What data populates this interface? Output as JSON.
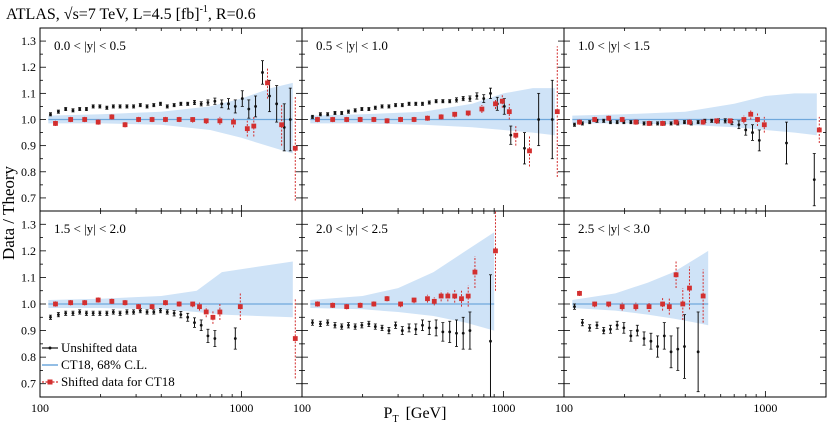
{
  "title": "ATLAS, √s=7 TeV, L=4.5 [fb]",
  "title_sup": "-1",
  "title_tail": ", R=0.6",
  "ylabel": "Data / Theory",
  "xlabel_main": "P",
  "xlabel_sub": "T",
  "xlabel_unit": "[GeV]",
  "legend": {
    "unshifted": "Unshifted data",
    "band": "CT18, 68% C.L.",
    "shifted": "Shifted data for CT18"
  },
  "colors": {
    "unshifted": "#111111",
    "band": "#cfe3f7",
    "line": "#6fa8dc",
    "shifted": "#d32f2f"
  },
  "chart_data": [
    {
      "type": "scatter",
      "title": "0.0 < |y| < 0.5",
      "xscale": "log",
      "xlim": [
        100,
        2000
      ],
      "ylim": [
        0.65,
        1.35
      ],
      "yticks": [
        0.7,
        0.8,
        0.9,
        1.0,
        1.1,
        1.2,
        1.3
      ],
      "xticks": [
        100,
        1000
      ],
      "band": {
        "x": [
          110,
          200,
          400,
          700,
          1000,
          1400,
          1800
        ],
        "lo": [
          0.985,
          0.985,
          0.98,
          0.96,
          0.93,
          0.895,
          0.87
        ],
        "hi": [
          1.015,
          1.02,
          1.03,
          1.05,
          1.08,
          1.12,
          1.14
        ]
      },
      "unshifted": {
        "x": [
          116,
          127,
          138,
          150,
          162,
          175,
          189,
          204,
          221,
          238,
          257,
          278,
          300,
          324,
          350,
          378,
          408,
          441,
          477,
          515,
          557,
          602,
          650,
          702,
          760,
          822,
          888,
          960,
          1040,
          1120,
          1210,
          1310,
          1420,
          1540,
          1680,
          1800
        ],
        "y": [
          1.02,
          1.03,
          1.04,
          1.035,
          1.04,
          1.04,
          1.05,
          1.05,
          1.045,
          1.05,
          1.05,
          1.05,
          1.05,
          1.055,
          1.05,
          1.055,
          1.06,
          1.05,
          1.055,
          1.06,
          1.06,
          1.065,
          1.06,
          1.065,
          1.07,
          1.06,
          1.06,
          1.05,
          1.08,
          1.04,
          1.05,
          1.18,
          1.09,
          1.06,
          0.97,
          1.0
        ],
        "err": [
          0.006,
          0.006,
          0.006,
          0.006,
          0.006,
          0.006,
          0.006,
          0.006,
          0.006,
          0.006,
          0.006,
          0.006,
          0.006,
          0.006,
          0.006,
          0.006,
          0.006,
          0.006,
          0.006,
          0.006,
          0.006,
          0.008,
          0.008,
          0.01,
          0.012,
          0.015,
          0.02,
          0.025,
          0.03,
          0.035,
          0.04,
          0.045,
          0.06,
          0.07,
          0.09,
          0.12
        ]
      },
      "shifted": {
        "x": [
          116,
          138,
          162,
          189,
          221,
          257,
          300,
          350,
          408,
          477,
          557,
          650,
          760,
          888,
          1040,
          1120,
          1310,
          1540,
          1800
        ],
        "y": [
          0.985,
          1.0,
          1.0,
          0.99,
          1.01,
          0.98,
          1.0,
          1.0,
          1.0,
          1.0,
          1.0,
          0.995,
          0.995,
          0.99,
          0.965,
          0.975,
          1.14,
          0.98,
          0.89
        ],
        "err": [
          0.01,
          0.01,
          0.01,
          0.01,
          0.01,
          0.01,
          0.01,
          0.01,
          0.01,
          0.01,
          0.012,
          0.012,
          0.015,
          0.02,
          0.03,
          0.04,
          0.06,
          0.08,
          0.2
        ]
      }
    },
    {
      "type": "scatter",
      "title": "0.5 < |y| < 1.0",
      "xscale": "log",
      "xlim": [
        100,
        2000
      ],
      "ylim": [
        0.65,
        1.35
      ],
      "yticks": [
        0.7,
        0.8,
        0.9,
        1.0,
        1.1,
        1.2,
        1.3
      ],
      "xticks": [
        100,
        1000
      ],
      "band": {
        "x": [
          110,
          200,
          400,
          700,
          1000,
          1400,
          1800
        ],
        "lo": [
          0.985,
          0.985,
          0.98,
          0.97,
          0.96,
          0.95,
          0.94
        ],
        "hi": [
          1.015,
          1.02,
          1.03,
          1.06,
          1.1,
          1.12,
          1.12
        ]
      },
      "unshifted": {
        "x": [
          116,
          127,
          138,
          150,
          162,
          175,
          189,
          204,
          221,
          238,
          257,
          278,
          300,
          324,
          350,
          378,
          408,
          441,
          477,
          515,
          557,
          602,
          650,
          702,
          760,
          822,
          888,
          960,
          1040,
          1120,
          1310,
          1540,
          1800
        ],
        "y": [
          1.01,
          1.02,
          1.02,
          1.025,
          1.025,
          1.03,
          1.035,
          1.04,
          1.04,
          1.045,
          1.05,
          1.05,
          1.055,
          1.055,
          1.06,
          1.06,
          1.06,
          1.065,
          1.07,
          1.07,
          1.07,
          1.075,
          1.08,
          1.08,
          1.09,
          1.08,
          1.1,
          1.06,
          1.05,
          0.94,
          0.89,
          1.0,
          1.0
        ],
        "err": [
          0.006,
          0.006,
          0.006,
          0.006,
          0.006,
          0.006,
          0.006,
          0.006,
          0.006,
          0.006,
          0.006,
          0.006,
          0.006,
          0.006,
          0.006,
          0.006,
          0.006,
          0.006,
          0.006,
          0.006,
          0.006,
          0.008,
          0.008,
          0.01,
          0.012,
          0.015,
          0.02,
          0.025,
          0.03,
          0.035,
          0.06,
          0.1,
          0.15
        ]
      },
      "shifted": {
        "x": [
          116,
          138,
          162,
          189,
          221,
          257,
          300,
          350,
          408,
          477,
          557,
          650,
          760,
          888,
          960,
          1040,
          1120,
          1310,
          1800
        ],
        "y": [
          1.0,
          1.0,
          1.0,
          1.0,
          1.0,
          0.995,
          1.0,
          1.0,
          1.005,
          1.01,
          1.02,
          1.025,
          1.04,
          1.06,
          1.07,
          1.03,
          0.94,
          0.88,
          1.03
        ],
        "err": [
          0.01,
          0.01,
          0.01,
          0.01,
          0.01,
          0.01,
          0.01,
          0.01,
          0.01,
          0.01,
          0.012,
          0.012,
          0.015,
          0.02,
          0.025,
          0.03,
          0.04,
          0.06,
          0.25
        ]
      }
    },
    {
      "type": "scatter",
      "title": "1.0 < |y| < 1.5",
      "xscale": "log",
      "xlim": [
        100,
        2000
      ],
      "ylim": [
        0.65,
        1.35
      ],
      "yticks": [
        0.7,
        0.8,
        0.9,
        1.0,
        1.1,
        1.2,
        1.3
      ],
      "xticks": [
        100,
        1000
      ],
      "band": {
        "x": [
          110,
          200,
          400,
          700,
          1000,
          1400,
          1800
        ],
        "lo": [
          0.985,
          0.985,
          0.98,
          0.97,
          0.96,
          0.95,
          0.94
        ],
        "hi": [
          1.015,
          1.02,
          1.03,
          1.06,
          1.09,
          1.1,
          1.1
        ]
      },
      "unshifted": {
        "x": [
          116,
          127,
          138,
          150,
          162,
          175,
          189,
          204,
          221,
          238,
          257,
          278,
          300,
          324,
          350,
          378,
          408,
          441,
          477,
          515,
          557,
          602,
          650,
          702,
          760,
          822,
          888,
          960,
          1310,
          1800
        ],
        "y": [
          0.98,
          0.985,
          0.99,
          0.995,
          0.995,
          0.99,
          0.99,
          0.99,
          0.99,
          0.99,
          0.985,
          0.985,
          0.985,
          0.985,
          0.985,
          0.985,
          0.99,
          0.985,
          0.99,
          0.995,
          0.995,
          0.995,
          0.995,
          0.99,
          0.98,
          0.96,
          0.95,
          0.92,
          0.91,
          0.77
        ],
        "err": [
          0.006,
          0.006,
          0.006,
          0.006,
          0.006,
          0.006,
          0.006,
          0.006,
          0.006,
          0.006,
          0.006,
          0.006,
          0.006,
          0.006,
          0.006,
          0.006,
          0.006,
          0.006,
          0.006,
          0.006,
          0.006,
          0.008,
          0.008,
          0.01,
          0.015,
          0.02,
          0.03,
          0.04,
          0.08,
          0.1
        ]
      },
      "shifted": {
        "x": [
          116,
          138,
          162,
          189,
          221,
          257,
          300,
          350,
          408,
          477,
          557,
          650,
          760,
          822,
          888,
          960,
          1800
        ],
        "y": [
          0.99,
          1.0,
          1.005,
          1.0,
          0.99,
          0.985,
          0.985,
          0.99,
          0.99,
          0.99,
          0.995,
          0.995,
          1.0,
          1.02,
          1.0,
          0.98,
          0.96
        ],
        "err": [
          0.01,
          0.01,
          0.01,
          0.01,
          0.01,
          0.01,
          0.01,
          0.01,
          0.01,
          0.01,
          0.012,
          0.012,
          0.015,
          0.02,
          0.025,
          0.03,
          0.05
        ]
      }
    },
    {
      "type": "scatter",
      "title": "1.5 < |y| < 2.0",
      "xscale": "log",
      "xlim": [
        100,
        2000
      ],
      "ylim": [
        0.65,
        1.35
      ],
      "yticks": [
        0.7,
        0.8,
        0.9,
        1.0,
        1.1,
        1.2,
        1.3
      ],
      "xticks": [
        100,
        1000
      ],
      "band": {
        "x": [
          110,
          200,
          400,
          600,
          800,
          1200,
          1800
        ],
        "lo": [
          0.985,
          0.985,
          0.98,
          0.97,
          0.96,
          0.955,
          0.95
        ],
        "hi": [
          1.015,
          1.02,
          1.03,
          1.05,
          1.12,
          1.14,
          1.16
        ]
      },
      "unshifted": {
        "x": [
          116,
          127,
          138,
          150,
          162,
          175,
          189,
          204,
          221,
          238,
          257,
          278,
          300,
          324,
          350,
          378,
          408,
          441,
          477,
          515,
          557,
          602,
          650,
          702,
          760,
          960
        ],
        "y": [
          0.95,
          0.96,
          0.965,
          0.965,
          0.97,
          0.965,
          0.965,
          0.965,
          0.965,
          0.97,
          0.965,
          0.97,
          0.97,
          0.975,
          0.97,
          0.97,
          0.975,
          0.97,
          0.965,
          0.96,
          0.95,
          0.93,
          0.92,
          0.88,
          0.87,
          0.87
        ],
        "err": [
          0.008,
          0.008,
          0.008,
          0.008,
          0.008,
          0.008,
          0.008,
          0.008,
          0.008,
          0.008,
          0.008,
          0.008,
          0.008,
          0.008,
          0.008,
          0.008,
          0.008,
          0.008,
          0.01,
          0.012,
          0.015,
          0.018,
          0.02,
          0.025,
          0.03,
          0.04
        ]
      },
      "shifted": {
        "x": [
          116,
          138,
          162,
          189,
          221,
          257,
          300,
          350,
          408,
          477,
          557,
          602,
          650,
          702,
          760,
          960,
          1800
        ],
        "y": [
          1.0,
          1.005,
          1.005,
          1.015,
          1.01,
          1.005,
          0.99,
          0.99,
          1.005,
          1.0,
          1.0,
          0.99,
          0.97,
          0.95,
          0.97,
          0.99,
          0.87
        ],
        "err": [
          0.01,
          0.01,
          0.01,
          0.01,
          0.01,
          0.01,
          0.01,
          0.01,
          0.01,
          0.01,
          0.012,
          0.015,
          0.02,
          0.025,
          0.03,
          0.05,
          0.15
        ]
      }
    },
    {
      "type": "scatter",
      "title": "2.0 < |y| < 2.5",
      "xscale": "log",
      "xlim": [
        100,
        2000
      ],
      "ylim": [
        0.65,
        1.35
      ],
      "yticks": [
        0.7,
        0.8,
        0.9,
        1.0,
        1.1,
        1.2,
        1.3
      ],
      "xticks": [
        100,
        1000
      ],
      "band": {
        "x": [
          110,
          200,
          300,
          450,
          650,
          900
        ],
        "lo": [
          0.985,
          0.98,
          0.97,
          0.955,
          0.93,
          0.9
        ],
        "hi": [
          1.015,
          1.03,
          1.06,
          1.12,
          1.2,
          1.27
        ]
      },
      "unshifted": {
        "x": [
          116,
          127,
          138,
          150,
          162,
          175,
          189,
          204,
          221,
          238,
          257,
          278,
          300,
          324,
          350,
          378,
          408,
          441,
          477,
          515,
          557,
          602,
          650,
          702,
          888
        ],
        "y": [
          0.93,
          0.925,
          0.93,
          0.92,
          0.915,
          0.92,
          0.915,
          0.92,
          0.925,
          0.915,
          0.91,
          0.9,
          0.92,
          0.9,
          0.91,
          0.905,
          0.92,
          0.91,
          0.91,
          0.895,
          0.895,
          0.89,
          0.89,
          0.9,
          0.86
        ],
        "err": [
          0.01,
          0.01,
          0.01,
          0.01,
          0.01,
          0.01,
          0.01,
          0.01,
          0.01,
          0.01,
          0.01,
          0.012,
          0.012,
          0.015,
          0.015,
          0.02,
          0.02,
          0.025,
          0.03,
          0.035,
          0.04,
          0.05,
          0.06,
          0.07,
          0.25
        ]
      },
      "shifted": {
        "x": [
          116,
          138,
          162,
          189,
          221,
          257,
          300,
          350,
          408,
          441,
          477,
          515,
          557,
          602,
          650,
          702,
          888
        ],
        "y": [
          1.0,
          0.995,
          0.99,
          0.995,
          1.0,
          1.02,
          1.0,
          1.015,
          1.02,
          1.01,
          1.03,
          1.03,
          1.03,
          1.02,
          1.03,
          1.12,
          1.2
        ],
        "err": [
          0.01,
          0.01,
          0.01,
          0.01,
          0.01,
          0.01,
          0.012,
          0.012,
          0.015,
          0.015,
          0.02,
          0.02,
          0.025,
          0.03,
          0.04,
          0.06,
          0.15
        ]
      }
    },
    {
      "type": "scatter",
      "title": "2.5 < |y| < 3.0",
      "xscale": "log",
      "xlim": [
        100,
        2000
      ],
      "ylim": [
        0.65,
        1.35
      ],
      "yticks": [
        0.7,
        0.8,
        0.9,
        1.0,
        1.1,
        1.2,
        1.3
      ],
      "xticks": [
        100,
        1000
      ],
      "band": {
        "x": [
          110,
          180,
          260,
          350,
          450,
          520
        ],
        "lo": [
          0.985,
          0.975,
          0.96,
          0.945,
          0.93,
          0.92
        ],
        "hi": [
          1.015,
          1.04,
          1.08,
          1.12,
          1.17,
          1.2
        ]
      },
      "unshifted": {
        "x": [
          116,
          127,
          138,
          150,
          162,
          175,
          189,
          204,
          221,
          238,
          257,
          278,
          300,
          324,
          350,
          378,
          408,
          477
        ],
        "y": [
          0.99,
          0.93,
          0.91,
          0.92,
          0.9,
          0.905,
          0.92,
          0.91,
          0.88,
          0.9,
          0.87,
          0.86,
          0.84,
          0.88,
          0.82,
          0.83,
          0.84,
          0.82
        ],
        "err": [
          0.01,
          0.012,
          0.012,
          0.012,
          0.012,
          0.015,
          0.015,
          0.02,
          0.02,
          0.02,
          0.025,
          0.03,
          0.04,
          0.05,
          0.06,
          0.08,
          0.12,
          0.15
        ]
      },
      "shifted": {
        "x": [
          116,
          138,
          162,
          189,
          221,
          257,
          300,
          324,
          350,
          378,
          408,
          477
        ],
        "y": [
          1.04,
          1.0,
          1.0,
          0.99,
          0.99,
          0.99,
          1.0,
          0.99,
          1.11,
          1.0,
          1.06,
          1.03
        ],
        "err": [
          0.01,
          0.012,
          0.012,
          0.015,
          0.015,
          0.02,
          0.025,
          0.03,
          0.05,
          0.06,
          0.08,
          0.1
        ]
      }
    }
  ]
}
